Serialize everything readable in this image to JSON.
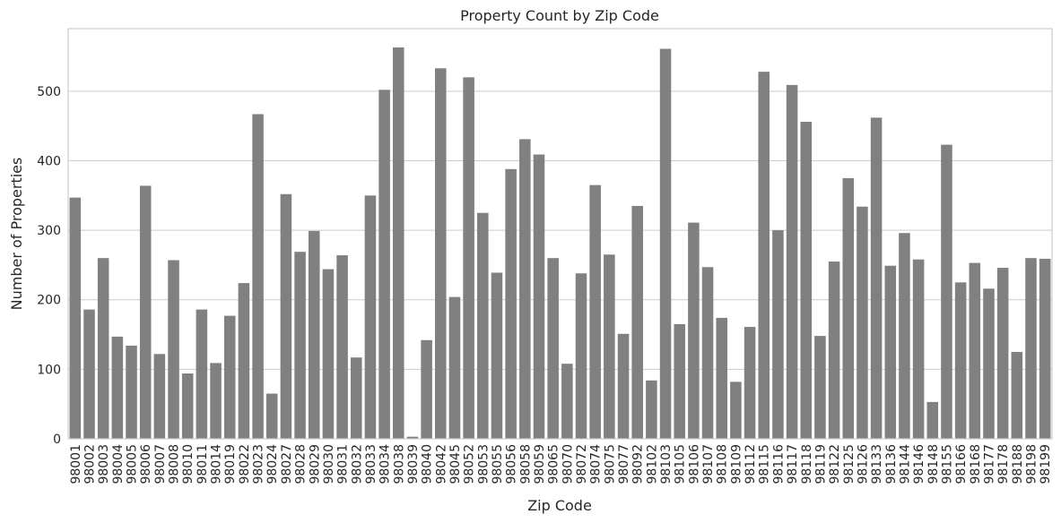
{
  "chart_data": {
    "type": "bar",
    "title": "Property Count by Zip Code",
    "xlabel": "Zip Code",
    "ylabel": "Number of Properties",
    "ylim": [
      0,
      590
    ],
    "yticks": [
      0,
      100,
      200,
      300,
      400,
      500
    ],
    "grid": "horizontal",
    "bar_color": "#808080",
    "categories": [
      "98001",
      "98002",
      "98003",
      "98004",
      "98005",
      "98006",
      "98007",
      "98008",
      "98010",
      "98011",
      "98014",
      "98019",
      "98022",
      "98023",
      "98024",
      "98027",
      "98028",
      "98029",
      "98030",
      "98031",
      "98032",
      "98033",
      "98034",
      "98038",
      "98039",
      "98040",
      "98042",
      "98045",
      "98052",
      "98053",
      "98055",
      "98056",
      "98058",
      "98059",
      "98065",
      "98070",
      "98072",
      "98074",
      "98075",
      "98077",
      "98092",
      "98102",
      "98103",
      "98105",
      "98106",
      "98107",
      "98108",
      "98109",
      "98112",
      "98115",
      "98116",
      "98117",
      "98118",
      "98119",
      "98122",
      "98125",
      "98126",
      "98133",
      "98136",
      "98144",
      "98146",
      "98148",
      "98155",
      "98166",
      "98168",
      "98177",
      "98178",
      "98188",
      "98198",
      "98199"
    ],
    "values": [
      347,
      186,
      260,
      147,
      134,
      364,
      122,
      257,
      94,
      186,
      109,
      177,
      224,
      467,
      65,
      352,
      269,
      299,
      244,
      264,
      117,
      350,
      502,
      563,
      3,
      142,
      533,
      204,
      520,
      325,
      239,
      388,
      431,
      409,
      260,
      108,
      238,
      365,
      265,
      151,
      335,
      84,
      561,
      165,
      311,
      247,
      174,
      82,
      161,
      528,
      300,
      509,
      456,
      148,
      255,
      375,
      334,
      462,
      249,
      296,
      258,
      53,
      423,
      225,
      253,
      216,
      246,
      125,
      260,
      259
    ]
  }
}
